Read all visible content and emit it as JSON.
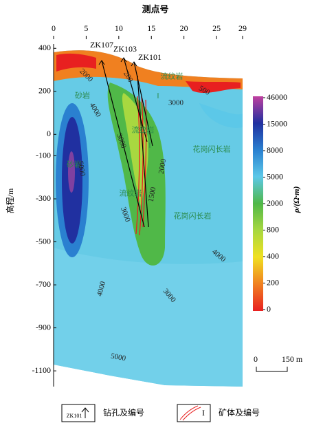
{
  "chart_data": {
    "type": "section",
    "title": "测点号",
    "y_label": "高程/m",
    "xlim": [
      0,
      29
    ],
    "xticks": [
      0,
      5,
      10,
      15,
      20,
      25,
      29
    ],
    "ylim": [
      -1170,
      420
    ],
    "yticks": [
      400,
      200,
      0,
      -100,
      -300,
      -500,
      -700,
      -900,
      -1100
    ],
    "colorbar": {
      "label": "ρ/(Ω·m)",
      "ticks": [
        46000,
        15000,
        8000,
        5000,
        2000,
        800,
        400,
        200,
        0
      ],
      "colors": [
        "#c040a0",
        "#2030a0",
        "#2a80d0",
        "#5cc8e8",
        "#50b848",
        "#a8d840",
        "#f0e020",
        "#f08020",
        "#e82020"
      ]
    },
    "boreholes": [
      {
        "name": "ZK107"
      },
      {
        "name": "ZK103"
      },
      {
        "name": "ZK101"
      }
    ],
    "annotations": [
      "砂岩",
      "砂岩",
      "流纹岩",
      "流纹岩",
      "流纹岩",
      "花岗闪长岩",
      "花岗闪长岩",
      "I",
      "I"
    ],
    "contour_labels": [
      2000,
      4000,
      3000,
      5000,
      3000,
      1500,
      2000,
      3000,
      500,
      4000,
      4000,
      3000,
      5000,
      200
    ],
    "scale_bar": {
      "start": "0",
      "end": "150 m"
    },
    "legend": [
      {
        "label": "钻孔及编号",
        "sample": "ZK101"
      },
      {
        "label": "矿体及编号",
        "sample": "I"
      }
    ]
  }
}
